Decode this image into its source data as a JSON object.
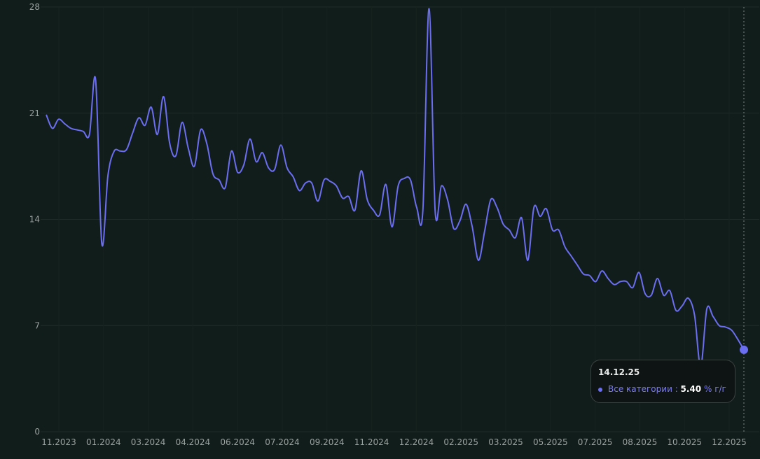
{
  "colors": {
    "line": "#6b6ef0",
    "background": "#111d1b",
    "grid": "#1f2c29",
    "tick_text": "#9aa19f"
  },
  "tooltip": {
    "date": "14.12.25",
    "series": "Все категории",
    "separator": " : ",
    "value": "5.40",
    "unit": "% г/г"
  },
  "chart_data": {
    "type": "line",
    "title": "",
    "xlabel": "",
    "ylabel": "",
    "ylim": [
      0,
      28
    ],
    "yticks": [
      0,
      7,
      14,
      21,
      28
    ],
    "xticks": [
      "11.2023",
      "01.2024",
      "03.2024",
      "04.2024",
      "06.2024",
      "07.2024",
      "09.2024",
      "11.2024",
      "12.2024",
      "02.2025",
      "03.2025",
      "05.2025",
      "07.2025",
      "08.2025",
      "10.2025",
      "12.2025"
    ],
    "x_range": [
      "2023-10-15",
      "2025-12-14"
    ],
    "grid": true,
    "series": [
      {
        "name": "Все категории",
        "points": [
          [
            "2023-10-15",
            20.9
          ],
          [
            "2023-10-22",
            20.0
          ],
          [
            "2023-10-29",
            20.6
          ],
          [
            "2023-11-05",
            20.3
          ],
          [
            "2023-11-12",
            20.0
          ],
          [
            "2023-11-19",
            19.9
          ],
          [
            "2023-11-26",
            19.8
          ],
          [
            "2023-12-03",
            19.6
          ],
          [
            "2023-12-10",
            23.2
          ],
          [
            "2023-12-17",
            12.4
          ],
          [
            "2023-12-24",
            16.9
          ],
          [
            "2023-12-31",
            18.5
          ],
          [
            "2024-01-07",
            18.5
          ],
          [
            "2024-01-14",
            18.6
          ],
          [
            "2024-01-21",
            19.7
          ],
          [
            "2024-01-28",
            20.7
          ],
          [
            "2024-02-04",
            20.2
          ],
          [
            "2024-02-11",
            21.4
          ],
          [
            "2024-02-18",
            19.6
          ],
          [
            "2024-02-25",
            22.1
          ],
          [
            "2024-03-03",
            19.0
          ],
          [
            "2024-03-10",
            18.2
          ],
          [
            "2024-03-17",
            20.4
          ],
          [
            "2024-03-24",
            18.7
          ],
          [
            "2024-03-31",
            17.5
          ],
          [
            "2024-04-07",
            19.9
          ],
          [
            "2024-04-14",
            19.0
          ],
          [
            "2024-04-21",
            17.0
          ],
          [
            "2024-04-28",
            16.6
          ],
          [
            "2024-05-05",
            16.1
          ],
          [
            "2024-05-12",
            18.5
          ],
          [
            "2024-05-19",
            17.1
          ],
          [
            "2024-05-26",
            17.6
          ],
          [
            "2024-06-02",
            19.3
          ],
          [
            "2024-06-09",
            17.8
          ],
          [
            "2024-06-16",
            18.4
          ],
          [
            "2024-06-23",
            17.4
          ],
          [
            "2024-06-30",
            17.3
          ],
          [
            "2024-07-07",
            18.9
          ],
          [
            "2024-07-14",
            17.4
          ],
          [
            "2024-07-21",
            16.8
          ],
          [
            "2024-07-28",
            15.9
          ],
          [
            "2024-08-04",
            16.4
          ],
          [
            "2024-08-11",
            16.4
          ],
          [
            "2024-08-18",
            15.2
          ],
          [
            "2024-08-25",
            16.6
          ],
          [
            "2024-09-01",
            16.5
          ],
          [
            "2024-09-08",
            16.2
          ],
          [
            "2024-09-15",
            15.4
          ],
          [
            "2024-09-22",
            15.5
          ],
          [
            "2024-09-29",
            14.6
          ],
          [
            "2024-10-06",
            17.2
          ],
          [
            "2024-10-13",
            15.3
          ],
          [
            "2024-10-20",
            14.6
          ],
          [
            "2024-10-27",
            14.3
          ],
          [
            "2024-11-03",
            16.3
          ],
          [
            "2024-11-10",
            13.5
          ],
          [
            "2024-11-17",
            16.2
          ],
          [
            "2024-11-24",
            16.7
          ],
          [
            "2024-12-01",
            16.6
          ],
          [
            "2024-12-08",
            14.8
          ],
          [
            "2024-12-15",
            14.6
          ],
          [
            "2024-12-22",
            27.9
          ],
          [
            "2024-12-29",
            14.5
          ],
          [
            "2025-01-05",
            16.2
          ],
          [
            "2025-01-12",
            15.3
          ],
          [
            "2025-01-19",
            13.4
          ],
          [
            "2025-01-26",
            13.9
          ],
          [
            "2025-02-02",
            15.0
          ],
          [
            "2025-02-09",
            13.5
          ],
          [
            "2025-02-16",
            11.3
          ],
          [
            "2025-02-23",
            13.2
          ],
          [
            "2025-03-02",
            15.3
          ],
          [
            "2025-03-09",
            14.8
          ],
          [
            "2025-03-16",
            13.7
          ],
          [
            "2025-03-23",
            13.3
          ],
          [
            "2025-03-30",
            12.8
          ],
          [
            "2025-04-06",
            14.1
          ],
          [
            "2025-04-13",
            11.3
          ],
          [
            "2025-04-20",
            14.8
          ],
          [
            "2025-04-27",
            14.2
          ],
          [
            "2025-05-04",
            14.7
          ],
          [
            "2025-05-11",
            13.3
          ],
          [
            "2025-05-18",
            13.3
          ],
          [
            "2025-05-25",
            12.2
          ],
          [
            "2025-06-01",
            11.6
          ],
          [
            "2025-06-08",
            11.0
          ],
          [
            "2025-06-15",
            10.4
          ],
          [
            "2025-06-22",
            10.3
          ],
          [
            "2025-06-29",
            9.9
          ],
          [
            "2025-07-06",
            10.6
          ],
          [
            "2025-07-13",
            10.1
          ],
          [
            "2025-07-20",
            9.7
          ],
          [
            "2025-07-27",
            9.9
          ],
          [
            "2025-08-03",
            9.9
          ],
          [
            "2025-08-10",
            9.5
          ],
          [
            "2025-08-17",
            10.5
          ],
          [
            "2025-08-24",
            9.1
          ],
          [
            "2025-08-31",
            9.0
          ],
          [
            "2025-09-07",
            10.1
          ],
          [
            "2025-09-14",
            9.0
          ],
          [
            "2025-09-21",
            9.3
          ],
          [
            "2025-09-28",
            8.0
          ],
          [
            "2025-10-05",
            8.3
          ],
          [
            "2025-10-12",
            8.8
          ],
          [
            "2025-10-19",
            7.7
          ],
          [
            "2025-10-26",
            4.3
          ],
          [
            "2025-11-02",
            8.1
          ],
          [
            "2025-11-09",
            7.6
          ],
          [
            "2025-11-16",
            7.0
          ],
          [
            "2025-11-23",
            6.9
          ],
          [
            "2025-11-30",
            6.7
          ],
          [
            "2025-12-07",
            6.1
          ],
          [
            "2025-12-14",
            5.4
          ]
        ]
      }
    ]
  }
}
